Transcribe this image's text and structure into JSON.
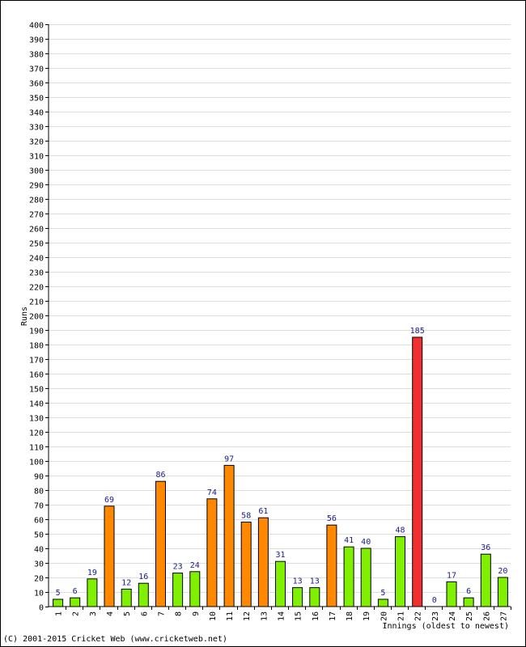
{
  "chart_data": {
    "type": "bar",
    "categories": [
      "1",
      "2",
      "3",
      "4",
      "5",
      "6",
      "7",
      "8",
      "9",
      "10",
      "11",
      "12",
      "13",
      "14",
      "15",
      "16",
      "17",
      "18",
      "19",
      "20",
      "21",
      "22",
      "23",
      "24",
      "25",
      "26",
      "27"
    ],
    "values": [
      5,
      6,
      19,
      69,
      12,
      16,
      86,
      23,
      24,
      74,
      97,
      58,
      61,
      31,
      13,
      13,
      56,
      41,
      40,
      5,
      48,
      185,
      0,
      17,
      6,
      36,
      20
    ],
    "colors": [
      "green",
      "green",
      "green",
      "orange",
      "green",
      "green",
      "orange",
      "green",
      "green",
      "orange",
      "orange",
      "orange",
      "orange",
      "green",
      "green",
      "green",
      "orange",
      "green",
      "green",
      "green",
      "green",
      "red",
      "green",
      "green",
      "green",
      "green",
      "green"
    ],
    "palette": {
      "green": "#80f000",
      "orange": "#ff8800",
      "red": "#f03030",
      "label": "#1a1a8c",
      "grid": "#dddddd"
    },
    "xlabel": "Innings (oldest to newest)",
    "ylabel": "Runs",
    "ylim": [
      0,
      400
    ],
    "ytick_step": 10,
    "grid": true
  },
  "footer": {
    "copyright": "(C) 2001-2015 Cricket Web (www.cricketweb.net)"
  }
}
